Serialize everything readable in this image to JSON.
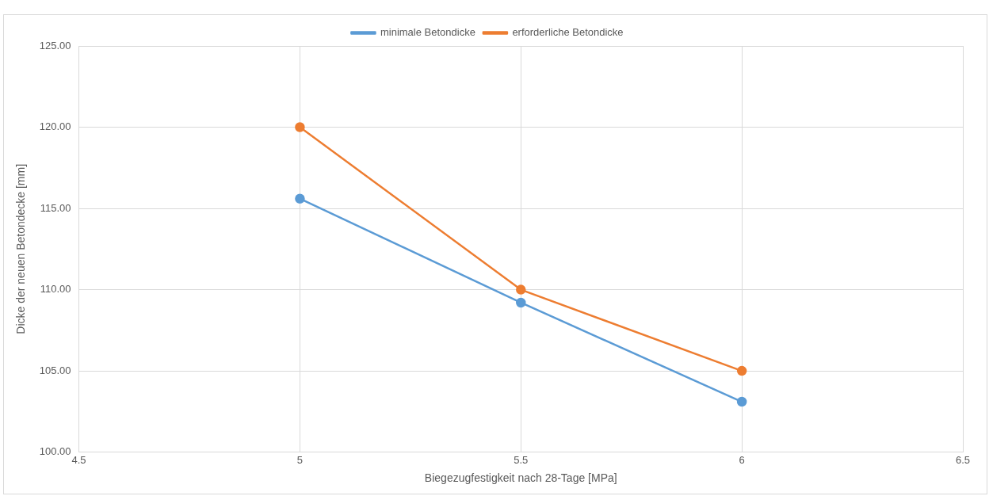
{
  "chart_data": {
    "type": "line",
    "xlabel": "Biegezugfestigkeit nach 28-Tage [MPa]",
    "ylabel": "Dicke der neuen Betondecke [mm]",
    "x": [
      5,
      5.5,
      6
    ],
    "series": [
      {
        "name": "minimale Betondicke",
        "color": "#5b9bd5",
        "values": [
          115.6,
          109.2,
          103.1
        ]
      },
      {
        "name": "erforderliche Betondicke",
        "color": "#ed7d31",
        "values": [
          120,
          110,
          105
        ]
      }
    ],
    "xlim": [
      4.5,
      6.5
    ],
    "xticks": [
      4.5,
      5,
      5.5,
      6,
      6.5
    ],
    "ylim": [
      100,
      125
    ],
    "yticks": [
      {
        "value": 100,
        "label": "100.00"
      },
      {
        "value": 105,
        "label": "105.00"
      },
      {
        "value": 110,
        "label": "110.00"
      },
      {
        "value": 115,
        "label": "115.00"
      },
      {
        "value": 120,
        "label": "120.00"
      },
      {
        "value": 125,
        "label": "125.00"
      }
    ],
    "grid": true,
    "legend": "top",
    "marker": "circle",
    "line_style": "solid"
  }
}
